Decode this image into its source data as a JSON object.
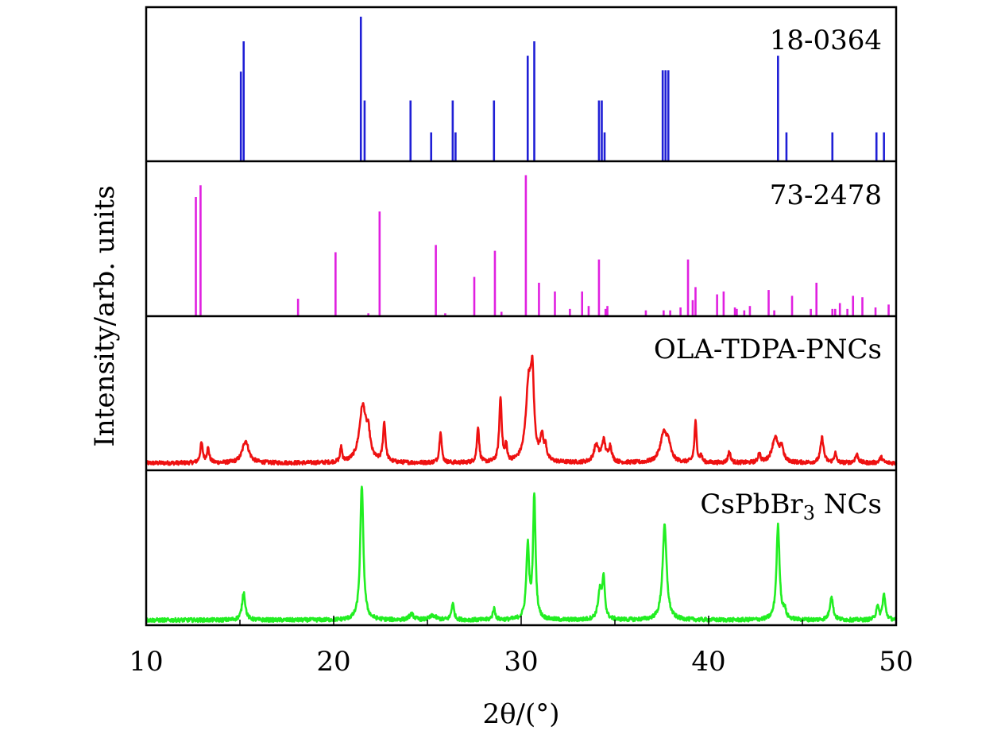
{
  "chart_data": {
    "type": "line",
    "title": "",
    "xlabel": "2θ/(°)",
    "ylabel": "Intensity/arb. units",
    "xlim": [
      10,
      50
    ],
    "xticks": [
      10,
      20,
      30,
      40,
      50
    ],
    "grid": false,
    "panels": [
      {
        "name": "18-0364",
        "kind": "reference-sticks",
        "color": "#1f1fd6",
        "label": "18-0364",
        "peaks": [
          [
            15.05,
            0.62
          ],
          [
            15.2,
            0.83
          ],
          [
            21.45,
            1.0
          ],
          [
            21.65,
            0.42
          ],
          [
            24.1,
            0.42
          ],
          [
            25.2,
            0.2
          ],
          [
            26.35,
            0.42
          ],
          [
            26.5,
            0.2
          ],
          [
            28.55,
            0.42
          ],
          [
            30.35,
            0.73
          ],
          [
            30.7,
            0.83
          ],
          [
            34.15,
            0.42
          ],
          [
            34.3,
            0.42
          ],
          [
            34.45,
            0.2
          ],
          [
            37.55,
            0.63
          ],
          [
            37.7,
            0.63
          ],
          [
            37.85,
            0.63
          ],
          [
            43.7,
            0.73
          ],
          [
            44.15,
            0.2
          ],
          [
            46.6,
            0.2
          ],
          [
            48.95,
            0.2
          ],
          [
            49.35,
            0.2
          ]
        ]
      },
      {
        "name": "73-2478",
        "kind": "reference-sticks",
        "color": "#e020e0",
        "label": "73-2478",
        "peaks": [
          [
            12.65,
            0.82
          ],
          [
            12.9,
            0.9
          ],
          [
            18.1,
            0.12
          ],
          [
            20.1,
            0.44
          ],
          [
            21.85,
            0.02
          ],
          [
            22.45,
            0.72
          ],
          [
            25.45,
            0.49
          ],
          [
            25.95,
            0.02
          ],
          [
            27.5,
            0.27
          ],
          [
            28.6,
            0.45
          ],
          [
            28.95,
            0.03
          ],
          [
            30.25,
            0.97
          ],
          [
            30.95,
            0.23
          ],
          [
            31.8,
            0.17
          ],
          [
            32.6,
            0.05
          ],
          [
            33.25,
            0.17
          ],
          [
            33.6,
            0.07
          ],
          [
            34.15,
            0.39
          ],
          [
            34.5,
            0.05
          ],
          [
            34.6,
            0.07
          ],
          [
            36.65,
            0.04
          ],
          [
            37.6,
            0.04
          ],
          [
            37.95,
            0.04
          ],
          [
            38.5,
            0.06
          ],
          [
            38.9,
            0.39
          ],
          [
            39.15,
            0.11
          ],
          [
            39.3,
            0.2
          ],
          [
            40.45,
            0.15
          ],
          [
            40.8,
            0.17
          ],
          [
            41.4,
            0.06
          ],
          [
            41.5,
            0.05
          ],
          [
            41.9,
            0.04
          ],
          [
            42.2,
            0.07
          ],
          [
            43.2,
            0.18
          ],
          [
            43.5,
            0.04
          ],
          [
            44.45,
            0.14
          ],
          [
            45.45,
            0.05
          ],
          [
            45.75,
            0.23
          ],
          [
            46.6,
            0.05
          ],
          [
            46.75,
            0.05
          ],
          [
            47.0,
            0.09
          ],
          [
            47.4,
            0.05
          ],
          [
            47.7,
            0.14
          ],
          [
            48.2,
            0.13
          ],
          [
            48.9,
            0.06
          ],
          [
            49.6,
            0.08
          ]
        ]
      },
      {
        "name": "OLA-TDPA-PNCs",
        "kind": "diffraction-pattern",
        "color": "#ee1111",
        "label": "OLA-TDPA-PNCs",
        "baseline": 0.04,
        "peaks": [
          [
            12.95,
            0.14,
            0.08
          ],
          [
            13.3,
            0.1,
            0.08
          ],
          [
            15.3,
            0.16,
            0.2
          ],
          [
            20.4,
            0.11,
            0.06
          ],
          [
            21.55,
            0.4,
            0.22
          ],
          [
            21.85,
            0.15,
            0.12
          ],
          [
            22.7,
            0.28,
            0.08
          ],
          [
            25.7,
            0.23,
            0.07
          ],
          [
            27.7,
            0.26,
            0.07
          ],
          [
            28.9,
            0.46,
            0.08
          ],
          [
            29.2,
            0.12,
            0.05
          ],
          [
            30.4,
            0.55,
            0.18
          ],
          [
            30.6,
            0.5,
            0.1
          ],
          [
            31.1,
            0.17,
            0.1
          ],
          [
            31.3,
            0.09,
            0.08
          ],
          [
            34.0,
            0.12,
            0.15
          ],
          [
            34.4,
            0.15,
            0.12
          ],
          [
            34.75,
            0.11,
            0.1
          ],
          [
            37.6,
            0.2,
            0.22
          ],
          [
            37.85,
            0.1,
            0.15
          ],
          [
            39.3,
            0.29,
            0.07
          ],
          [
            39.6,
            0.05,
            0.06
          ],
          [
            41.1,
            0.08,
            0.08
          ],
          [
            42.7,
            0.07,
            0.07
          ],
          [
            43.55,
            0.18,
            0.2
          ],
          [
            43.9,
            0.1,
            0.1
          ],
          [
            46.05,
            0.18,
            0.1
          ],
          [
            46.75,
            0.07,
            0.07
          ],
          [
            47.9,
            0.06,
            0.1
          ],
          [
            49.2,
            0.04,
            0.1
          ]
        ]
      },
      {
        "name": "CsPbBr3 NCs",
        "kind": "diffraction-pattern",
        "color": "#22ee22",
        "label": "CsPbBr",
        "label_subscript": "3",
        "label_suffix": " NCs",
        "baseline": 0.025,
        "peaks": [
          [
            15.2,
            0.2,
            0.1
          ],
          [
            21.5,
            0.96,
            0.1
          ],
          [
            24.15,
            0.04,
            0.15
          ],
          [
            25.3,
            0.03,
            0.2
          ],
          [
            26.35,
            0.12,
            0.08
          ],
          [
            28.55,
            0.08,
            0.08
          ],
          [
            30.35,
            0.52,
            0.09
          ],
          [
            30.7,
            0.88,
            0.08
          ],
          [
            34.2,
            0.2,
            0.12
          ],
          [
            34.4,
            0.27,
            0.08
          ],
          [
            37.65,
            0.67,
            0.13
          ],
          [
            43.7,
            0.67,
            0.1
          ],
          [
            44.05,
            0.06,
            0.08
          ],
          [
            46.55,
            0.17,
            0.1
          ],
          [
            49.0,
            0.1,
            0.08
          ],
          [
            49.35,
            0.18,
            0.09
          ]
        ]
      }
    ]
  }
}
